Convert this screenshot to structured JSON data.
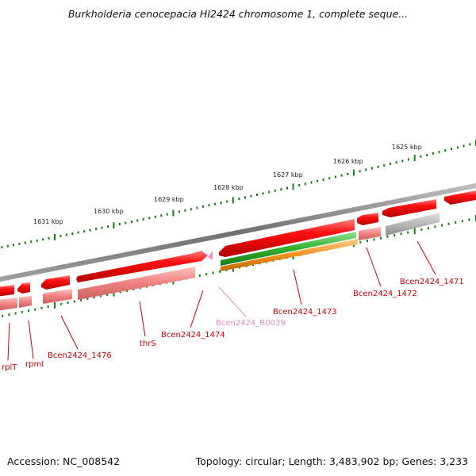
{
  "title": "Burkholderia cenocepacia HI2424 chromosome 1, complete seque...",
  "footer": {
    "accession": "Accession: NC_008542",
    "topology": "Topology: circular; Length: 3,483,902 bp; Genes: 3,233"
  },
  "colors": {
    "gene_red": "#e00000",
    "gene_pink": "#f08080",
    "gene_grey": "#b0b0b0",
    "gene_green": "#30b030",
    "gene_orange": "#f09020",
    "rna_pink": "#f080c0",
    "backbone": "#808080",
    "tick": "#1a7a1a",
    "label_red": "#cc0000",
    "label_pink": "#e888c0"
  },
  "scale_labels": [
    "1625 kbp",
    "1626 kbp",
    "1627 kbp",
    "1628 kbp",
    "1629 kbp",
    "1630 kbp",
    "1631 kbp"
  ],
  "genes": [
    {
      "id": "Bcen2424_1471",
      "label": "Bcen2424_1471",
      "kind": "cds"
    },
    {
      "id": "Bcen2424_1472",
      "label": "Bcen2424_1472",
      "kind": "cds"
    },
    {
      "id": "Bcen2424_1473",
      "label": "Bcen2424_1473",
      "kind": "cds"
    },
    {
      "id": "Bcen2424_R0039",
      "label": "Bcen2424_R0039",
      "kind": "rna"
    },
    {
      "id": "Bcen2424_1474",
      "label": "Bcen2424_1474",
      "kind": "cds"
    },
    {
      "id": "thrS",
      "label": "thrS",
      "kind": "cds"
    },
    {
      "id": "Bcen2424_1476",
      "label": "Bcen2424_1476",
      "kind": "cds"
    },
    {
      "id": "rpmI",
      "label": "rpmI",
      "kind": "cds"
    },
    {
      "id": "rplT",
      "label": "rplT",
      "kind": "cds"
    }
  ]
}
